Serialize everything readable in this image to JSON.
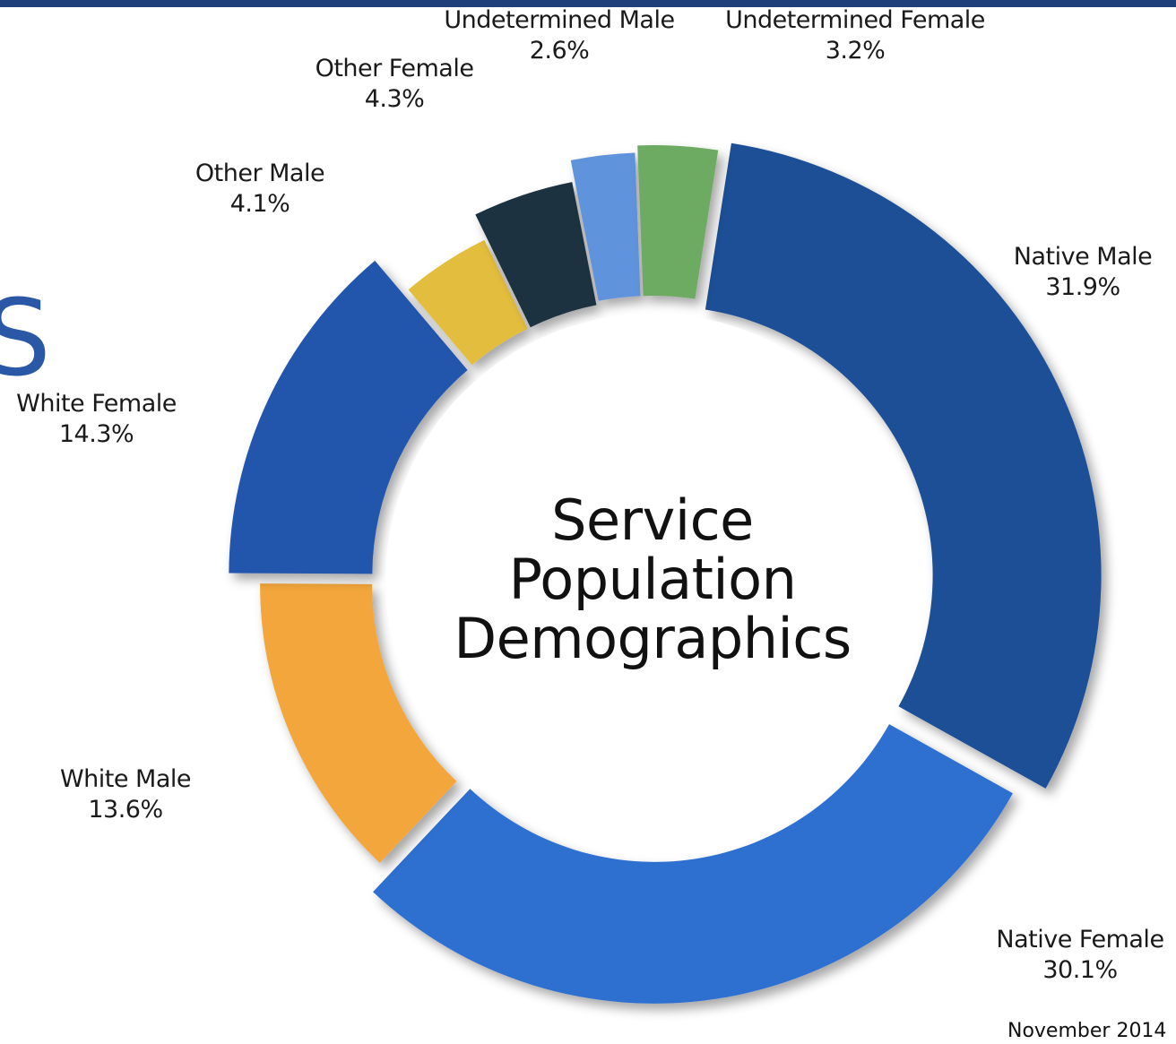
{
  "chart_data": {
    "type": "pie",
    "title": "Service Population Demographics",
    "title_lines": [
      "Service",
      "Population",
      "Demographics"
    ],
    "series": [
      {
        "name": "Native Male",
        "value": 31.9,
        "value_label": "31.9%",
        "color": "#1f4f96"
      },
      {
        "name": "Native Female",
        "value": 30.1,
        "value_label": "30.1%",
        "color": "#2f6fd0"
      },
      {
        "name": "White Male",
        "value": 13.6,
        "value_label": "13.6%",
        "color": "#f2a63a"
      },
      {
        "name": "White Female",
        "value": 14.3,
        "value_label": "14.3%",
        "color": "#2456ad"
      },
      {
        "name": "Other Male",
        "value": 4.1,
        "value_label": "4.1%",
        "color": "#e3bd3c"
      },
      {
        "name": "Other Female",
        "value": 4.3,
        "value_label": "4.3%",
        "color": "#1d3340"
      },
      {
        "name": "Undetermined Male",
        "value": 2.6,
        "value_label": "2.6%",
        "color": "#5f93dc"
      },
      {
        "name": "Undetermined Female",
        "value": 3.2,
        "value_label": "3.2%",
        "color": "#6dab62"
      }
    ],
    "legend": "none",
    "grid": false
  },
  "page": {
    "footer_date": "November 2014",
    "cut_letter": "S",
    "top_rule_color": "#1f3f7a"
  }
}
